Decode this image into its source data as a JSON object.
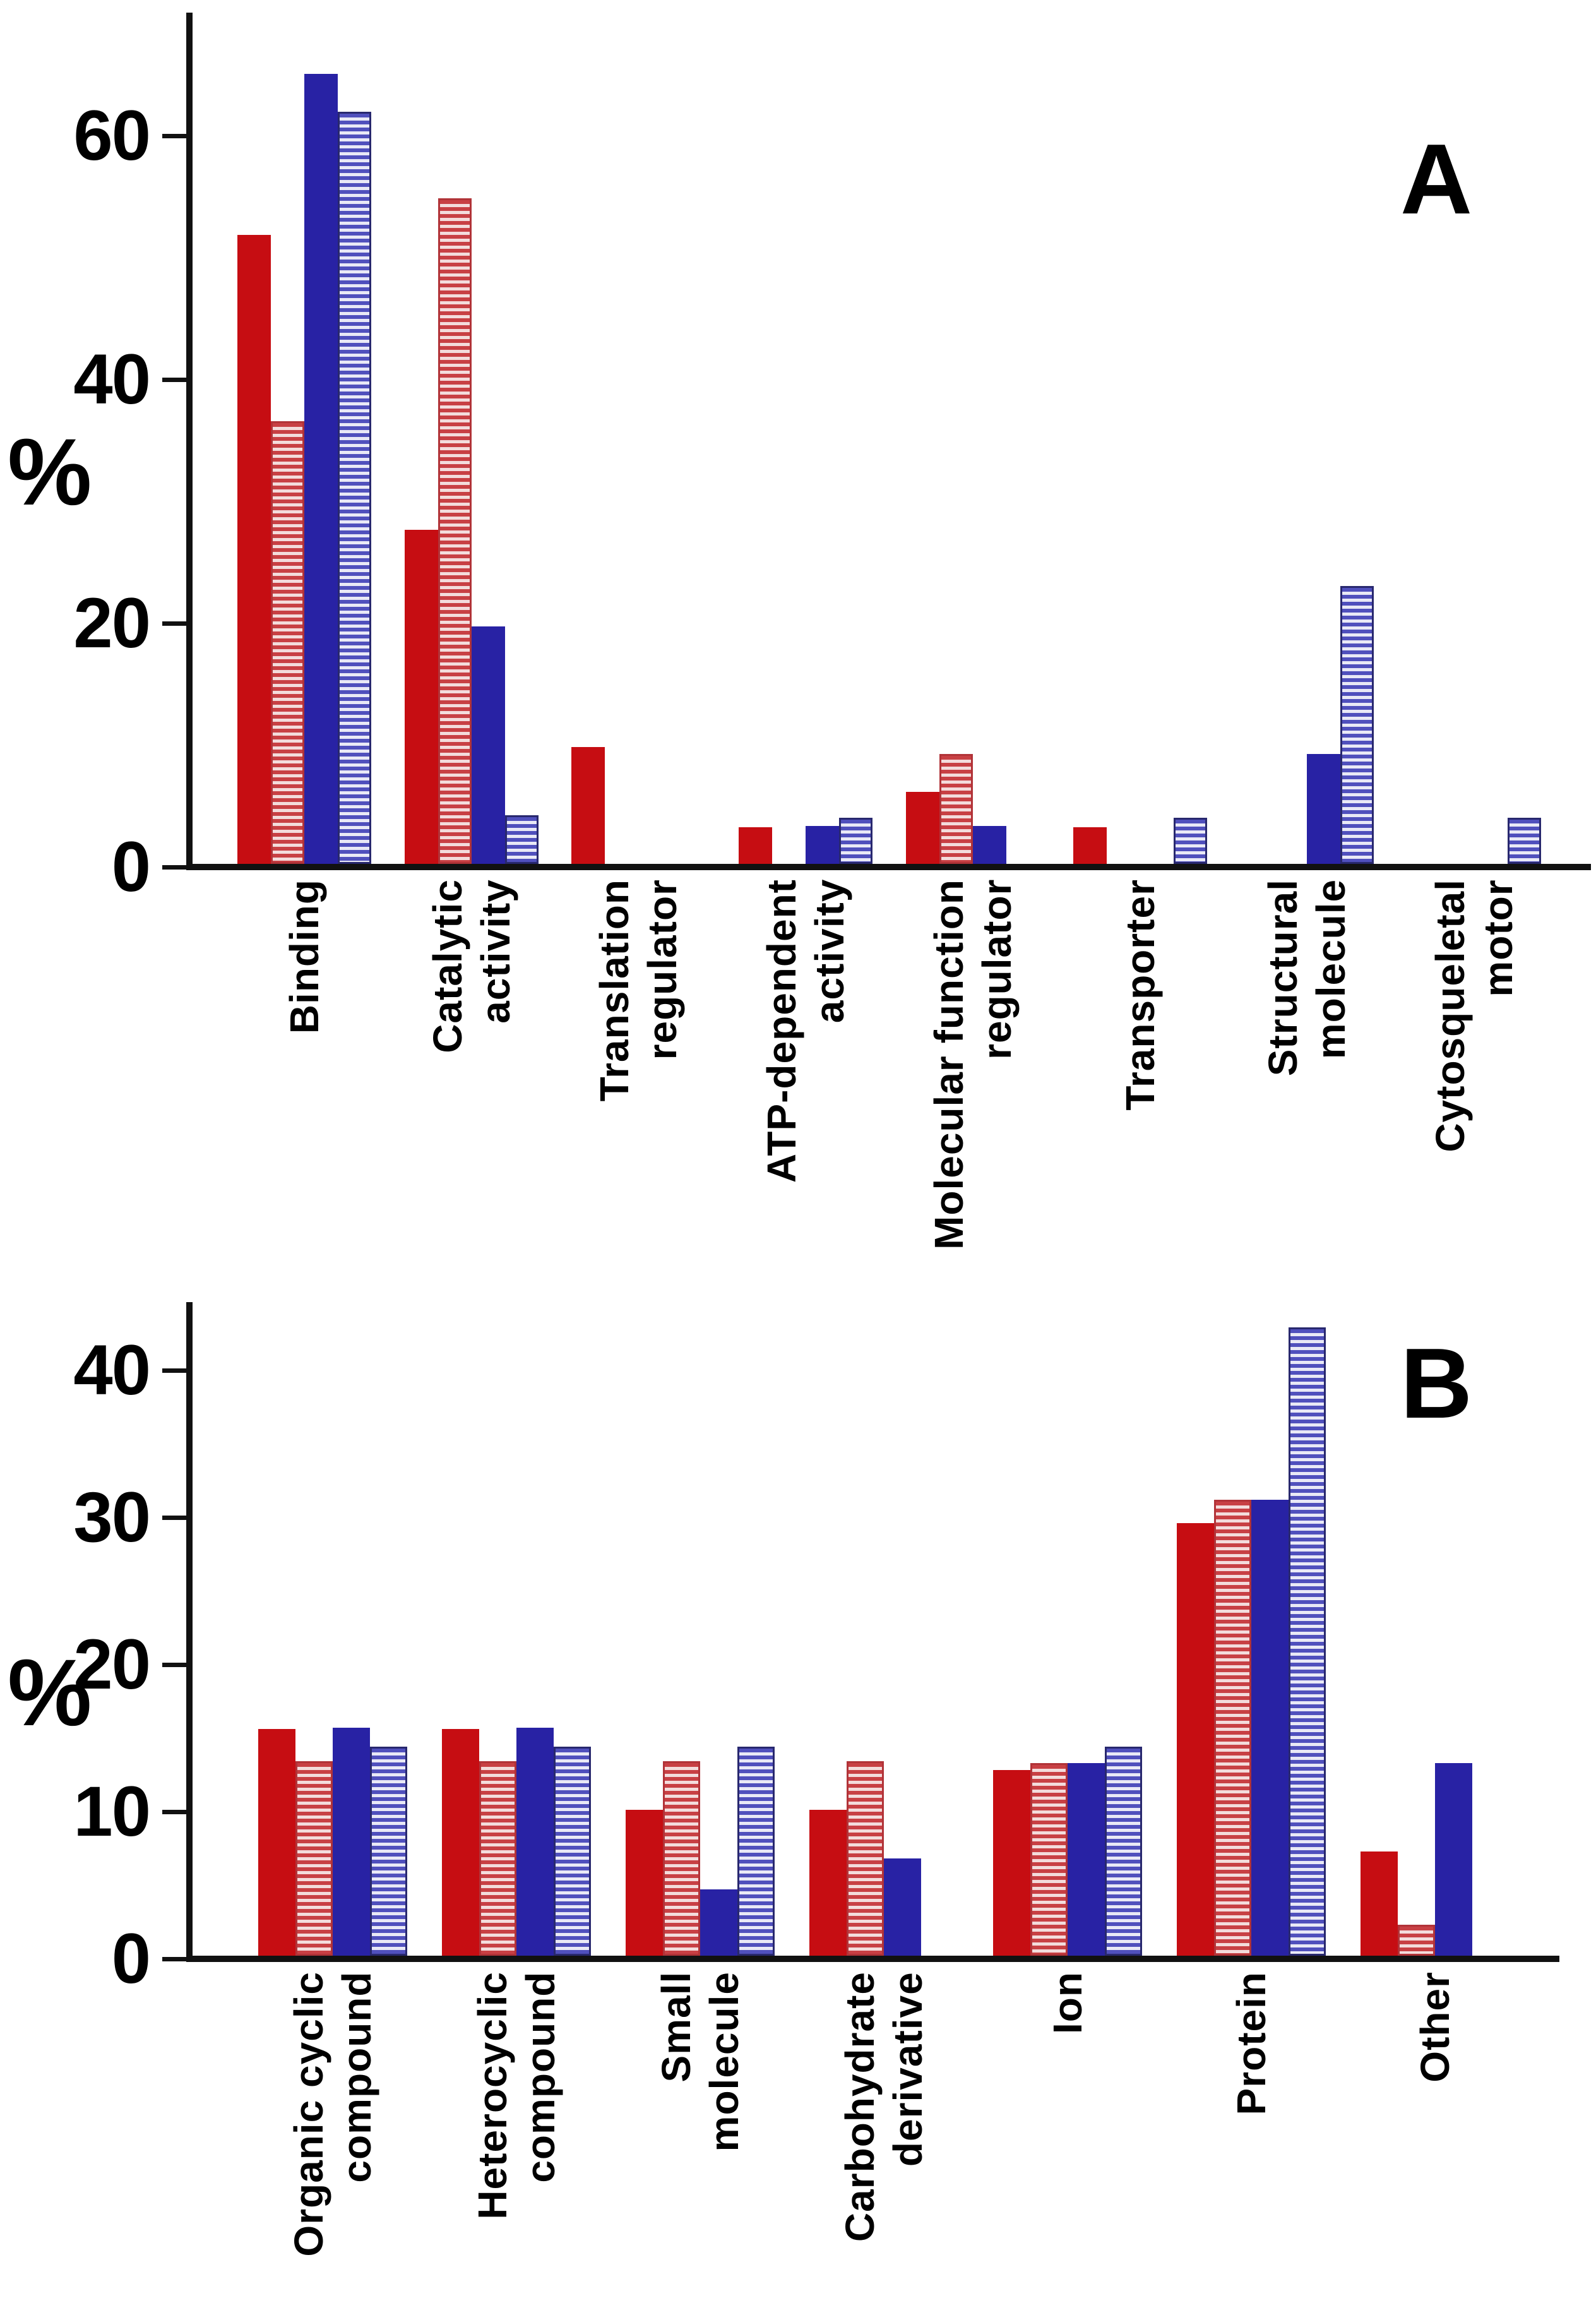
{
  "figure": {
    "background": "#ffffff",
    "panels": [
      {
        "letter": "A",
        "ylabel": "%"
      },
      {
        "letter": "B",
        "ylabel": "%"
      }
    ]
  },
  "colors": {
    "solid_red": "#c60d12",
    "striped_red_stripe": "#c84044",
    "striped_red_bg": "#f3dcdc",
    "striped_red_border": "#b13338",
    "solid_blue": "#2822a4",
    "striped_blue_stripe": "#5050bd",
    "striped_blue_bg": "#e9e9f6",
    "striped_blue_border": "#28286e",
    "axis": "#111111",
    "text": "#000000"
  },
  "chart_data": [
    {
      "type": "bar",
      "panel": "A",
      "title": "",
      "xlabel": "",
      "ylabel": "%",
      "ylim": [
        0,
        70
      ],
      "yticks": [
        0,
        20,
        40,
        60
      ],
      "grid": false,
      "legend_position": "none",
      "categories": [
        "Binding",
        "Catalytic\nactivity",
        "Translation\nregulator",
        "ATP-dependent\nactivity",
        "Molecular function\nregulator",
        "Transporter",
        "Structural\nmolecule",
        "Cytosqueletal\nmotor"
      ],
      "series": [
        {
          "name": "solid dark red bar",
          "style": "solid-red",
          "values": [
            51.6,
            27.4,
            9.6,
            3.0,
            5.9,
            3.0,
            0,
            0
          ]
        },
        {
          "name": "red striped bar",
          "style": "striped-red",
          "values": [
            36.3,
            54.6,
            0,
            0,
            9.0,
            0,
            0,
            0
          ]
        },
        {
          "name": "solid dark blue bar",
          "style": "solid-blue",
          "values": [
            64.8,
            19.5,
            0,
            3.1,
            3.1,
            0,
            9.0,
            0
          ]
        },
        {
          "name": "blue striped bar",
          "style": "striped-blue",
          "values": [
            61.7,
            4.0,
            0,
            3.8,
            0,
            3.8,
            22.8,
            3.8
          ]
        }
      ]
    },
    {
      "type": "bar",
      "panel": "B",
      "title": "",
      "xlabel": "",
      "ylabel": "%",
      "ylim": [
        0,
        45
      ],
      "yticks": [
        0,
        10,
        20,
        30,
        40
      ],
      "grid": false,
      "legend_position": "none",
      "categories": [
        "Organic cyclic\ncompound",
        "Heterocyclic\ncompound",
        "Small\nmolecule",
        "Carbohydrate\nderivative",
        "Ion",
        "Protein",
        "Other"
      ],
      "series": [
        {
          "name": "solid dark red bar",
          "style": "solid-red",
          "values": [
            15.4,
            15.4,
            9.9,
            9.9,
            12.6,
            29.4,
            7.1
          ]
        },
        {
          "name": "red striped bar",
          "style": "striped-red",
          "values": [
            13.2,
            13.2,
            13.2,
            13.2,
            13.1,
            31.0,
            2.1
          ]
        },
        {
          "name": "solid dark blue bar",
          "style": "solid-blue",
          "values": [
            15.5,
            15.5,
            4.5,
            6.6,
            13.1,
            31.0,
            13.1
          ]
        },
        {
          "name": "blue striped bar",
          "style": "striped-blue",
          "values": [
            14.2,
            14.2,
            14.2,
            0,
            14.2,
            42.7,
            0
          ]
        }
      ]
    }
  ]
}
